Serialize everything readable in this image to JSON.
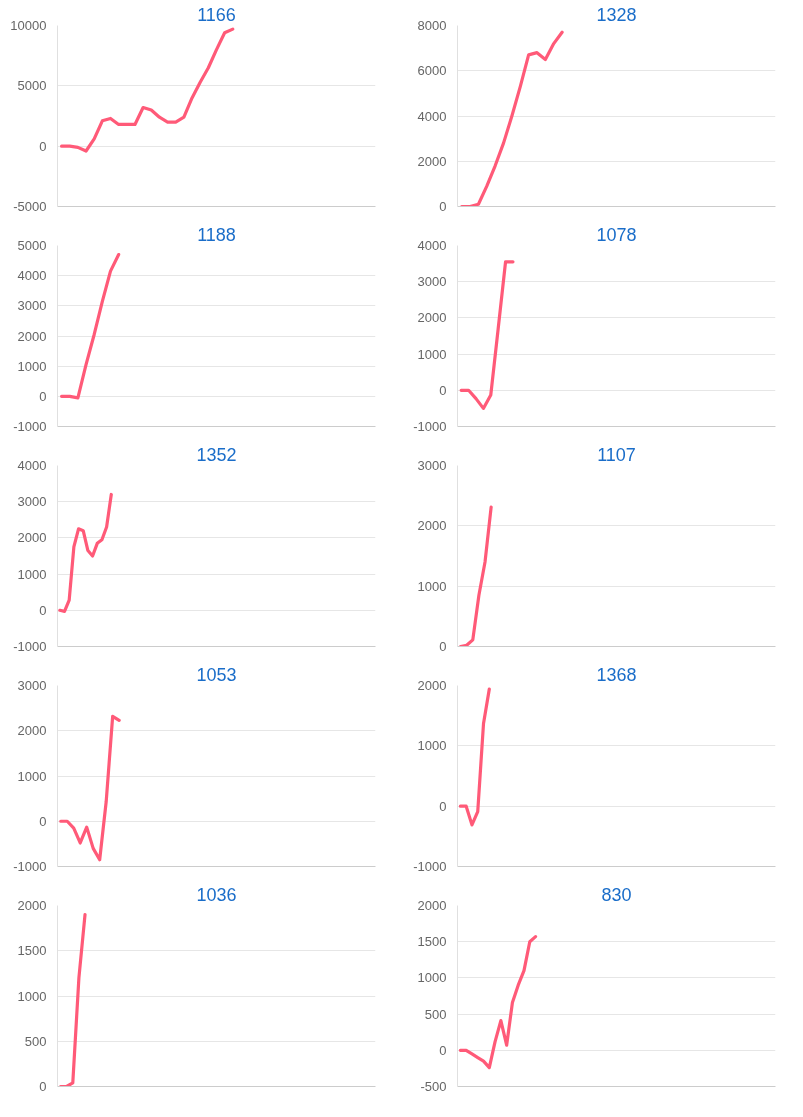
{
  "chart_data": [
    {
      "type": "line",
      "title": "1166",
      "categories": [
        null,
        null,
        null,
        null,
        null,
        null,
        null,
        null,
        null,
        null,
        null,
        null,
        null,
        null,
        null,
        null,
        null,
        null,
        null,
        null,
        null,
        null,
        null,
        null,
        null,
        null,
        null,
        null,
        null,
        null,
        null,
        null,
        null,
        null,
        null,
        null,
        null,
        null,
        null
      ],
      "values": [
        0,
        0,
        -100,
        -400,
        600,
        2100,
        2300,
        1800,
        1800,
        1800,
        3200,
        3000,
        2400,
        2000,
        2000,
        2400,
        4000,
        5300,
        6500,
        8000,
        9400,
        9700,
        null,
        null,
        null,
        null,
        null,
        null,
        null,
        null,
        null,
        null,
        null,
        null,
        null,
        null,
        null,
        null,
        null
      ],
      "color": "#ff5a78",
      "ylim": [
        -5000,
        10000
      ],
      "yticks": [
        -5000,
        0,
        5000,
        10000
      ],
      "grid": "y",
      "tick_labels": "y"
    },
    {
      "type": "line",
      "title": "1328",
      "categories": [
        null,
        null,
        null,
        null,
        null,
        null,
        null,
        null,
        null,
        null,
        null,
        null,
        null,
        null,
        null,
        null,
        null,
        null,
        null,
        null,
        null,
        null,
        null,
        null,
        null,
        null,
        null,
        null,
        null,
        null,
        null,
        null,
        null,
        null,
        null,
        null,
        null,
        null
      ],
      "values": [
        0,
        0,
        100,
        900,
        1800,
        2800,
        4000,
        5300,
        6700,
        6800,
        6500,
        7200,
        7700,
        null,
        null,
        null,
        null,
        null,
        null,
        null,
        null,
        null,
        null,
        null,
        null,
        null,
        null,
        null,
        null,
        null,
        null,
        null,
        null,
        null,
        null,
        null,
        null,
        null
      ],
      "color": "#ff5a78",
      "ylim": [
        0,
        8000
      ],
      "yticks": [
        0,
        2000,
        4000,
        6000,
        8000
      ],
      "grid": "y",
      "tick_labels": "y"
    },
    {
      "type": "line",
      "title": "1188",
      "categories": [
        null,
        null,
        null,
        null,
        null,
        null,
        null,
        null,
        null,
        null,
        null,
        null,
        null,
        null,
        null,
        null,
        null,
        null,
        null,
        null,
        null,
        null,
        null,
        null,
        null,
        null,
        null,
        null,
        null,
        null,
        null,
        null,
        null,
        null,
        null,
        null,
        null,
        null,
        null
      ],
      "values": [
        0,
        0,
        -50,
        1050,
        2050,
        3150,
        4150,
        4700,
        null,
        null,
        null,
        null,
        null,
        null,
        null,
        null,
        null,
        null,
        null,
        null,
        null,
        null,
        null,
        null,
        null,
        null,
        null,
        null,
        null,
        null,
        null,
        null,
        null,
        null,
        null,
        null,
        null,
        null,
        null
      ],
      "color": "#ff5a78",
      "ylim": [
        -1000,
        5000
      ],
      "yticks": [
        -1000,
        0,
        1000,
        2000,
        3000,
        4000,
        5000
      ],
      "grid": "y",
      "tick_labels": "y"
    },
    {
      "type": "line",
      "title": "1078",
      "categories": [
        null,
        null,
        null,
        null,
        null,
        null,
        null,
        null,
        null,
        null,
        null,
        null,
        null,
        null,
        null,
        null,
        null,
        null,
        null,
        null,
        null,
        null,
        null,
        null,
        null,
        null,
        null,
        null,
        null,
        null,
        null,
        null,
        null,
        null,
        null,
        null,
        null,
        null,
        null,
        null,
        null,
        null,
        null
      ],
      "values": [
        0,
        0,
        -230,
        -500,
        -130,
        1700,
        3550,
        3550,
        null,
        null,
        null,
        null,
        null,
        null,
        null,
        null,
        null,
        null,
        null,
        null,
        null,
        null,
        null,
        null,
        null,
        null,
        null,
        null,
        null,
        null,
        null,
        null,
        null,
        null,
        null,
        null,
        null,
        null,
        null,
        null,
        null,
        null,
        null
      ],
      "color": "#ff5a78",
      "ylim": [
        -1000,
        4000
      ],
      "yticks": [
        -1000,
        0,
        1000,
        2000,
        3000,
        4000
      ],
      "grid": "y",
      "tick_labels": "y"
    },
    {
      "type": "line",
      "title": "1352",
      "categories": [
        null,
        null,
        null,
        null,
        null,
        null,
        null,
        null,
        null,
        null,
        null,
        null,
        null,
        null,
        null,
        null,
        null,
        null,
        null,
        null,
        null,
        null,
        null,
        null,
        null,
        null,
        null,
        null,
        null,
        null,
        null,
        null,
        null,
        null,
        null,
        null,
        null,
        null,
        null,
        null,
        null,
        null,
        null,
        null,
        null,
        null,
        null,
        null,
        null,
        null,
        null,
        null,
        null,
        null,
        null,
        null,
        null,
        null,
        null,
        null,
        null,
        null,
        null,
        null,
        null,
        null,
        null,
        null
      ],
      "values": [
        0,
        -30,
        280,
        1750,
        2250,
        2200,
        1650,
        1500,
        1850,
        1950,
        2300,
        3200,
        null,
        null,
        null,
        null,
        null,
        null,
        null,
        null,
        null,
        null,
        null,
        null,
        null,
        null,
        null,
        null,
        null,
        null,
        null,
        null,
        null,
        null,
        null,
        null,
        null,
        null,
        null,
        null,
        null,
        null,
        null,
        null,
        null,
        null,
        null,
        null,
        null,
        null,
        null,
        null,
        null,
        null,
        null,
        null,
        null,
        null,
        null,
        null,
        null,
        null,
        null,
        null,
        null,
        null,
        null,
        null
      ],
      "color": "#ff5a78",
      "ylim": [
        -1000,
        4000
      ],
      "yticks": [
        -1000,
        0,
        1000,
        2000,
        3000,
        4000
      ],
      "grid": "y",
      "tick_labels": "y"
    },
    {
      "type": "line",
      "title": "1107",
      "categories": [
        null,
        null,
        null,
        null,
        null,
        null,
        null,
        null,
        null,
        null,
        null,
        null,
        null,
        null,
        null,
        null,
        null,
        null,
        null,
        null,
        null,
        null,
        null,
        null,
        null,
        null,
        null,
        null,
        null,
        null,
        null,
        null,
        null,
        null,
        null,
        null,
        null,
        null,
        null,
        null,
        null,
        null,
        null,
        null,
        null,
        null,
        null,
        null,
        null,
        null,
        null,
        null
      ],
      "values": [
        0,
        20,
        110,
        850,
        1400,
        2310,
        null,
        null,
        null,
        null,
        null,
        null,
        null,
        null,
        null,
        null,
        null,
        null,
        null,
        null,
        null,
        null,
        null,
        null,
        null,
        null,
        null,
        null,
        null,
        null,
        null,
        null,
        null,
        null,
        null,
        null,
        null,
        null,
        null,
        null,
        null,
        null,
        null,
        null,
        null,
        null,
        null,
        null,
        null,
        null,
        null,
        null
      ],
      "color": "#ff5a78",
      "ylim": [
        0,
        3000
      ],
      "yticks": [
        0,
        1000,
        2000,
        3000
      ],
      "grid": "y",
      "tick_labels": "y"
    },
    {
      "type": "line",
      "title": "1053",
      "categories": [
        null,
        null,
        null,
        null,
        null,
        null,
        null,
        null,
        null,
        null,
        null,
        null,
        null,
        null,
        null,
        null,
        null,
        null,
        null,
        null,
        null,
        null,
        null,
        null,
        null,
        null,
        null,
        null,
        null,
        null,
        null,
        null,
        null,
        null,
        null,
        null,
        null,
        null,
        null,
        null,
        null,
        null,
        null,
        null,
        null,
        null,
        null,
        null,
        null
      ],
      "values": [
        0,
        0,
        -150,
        -480,
        -130,
        -600,
        -850,
        430,
        2320,
        2230,
        null,
        null,
        null,
        null,
        null,
        null,
        null,
        null,
        null,
        null,
        null,
        null,
        null,
        null,
        null,
        null,
        null,
        null,
        null,
        null,
        null,
        null,
        null,
        null,
        null,
        null,
        null,
        null,
        null,
        null,
        null,
        null,
        null,
        null,
        null,
        null,
        null,
        null,
        null
      ],
      "color": "#ff5a78",
      "ylim": [
        -1000,
        3000
      ],
      "yticks": [
        -1000,
        0,
        1000,
        2000,
        3000
      ],
      "grid": "y",
      "tick_labels": "y"
    },
    {
      "type": "line",
      "title": "1368",
      "categories": [
        null,
        null,
        null,
        null,
        null,
        null,
        null,
        null,
        null,
        null,
        null,
        null,
        null,
        null,
        null,
        null,
        null,
        null,
        null,
        null,
        null,
        null,
        null,
        null,
        null,
        null,
        null,
        null,
        null,
        null,
        null,
        null,
        null,
        null,
        null,
        null,
        null,
        null,
        null,
        null,
        null,
        null,
        null,
        null,
        null,
        null,
        null,
        null,
        null,
        null,
        null,
        null,
        null,
        null,
        null
      ],
      "values": [
        0,
        0,
        -310,
        -90,
        1370,
        1940,
        null,
        null,
        null,
        null,
        null,
        null,
        null,
        null,
        null,
        null,
        null,
        null,
        null,
        null,
        null,
        null,
        null,
        null,
        null,
        null,
        null,
        null,
        null,
        null,
        null,
        null,
        null,
        null,
        null,
        null,
        null,
        null,
        null,
        null,
        null,
        null,
        null,
        null,
        null,
        null,
        null,
        null,
        null,
        null,
        null,
        null,
        null,
        null,
        null
      ],
      "color": "#ff5a78",
      "ylim": [
        -1000,
        2000
      ],
      "yticks": [
        -1000,
        0,
        1000,
        2000
      ],
      "grid": "y",
      "tick_labels": "y"
    },
    {
      "type": "line",
      "title": "1036",
      "categories": [
        null,
        null,
        null,
        null,
        null,
        null,
        null,
        null,
        null,
        null,
        null,
        null,
        null,
        null,
        null,
        null,
        null,
        null,
        null,
        null,
        null,
        null,
        null,
        null,
        null,
        null,
        null,
        null,
        null,
        null,
        null,
        null,
        null,
        null,
        null,
        null,
        null,
        null,
        null,
        null,
        null,
        null,
        null,
        null,
        null,
        null,
        null,
        null,
        null,
        null,
        null,
        null
      ],
      "values": [
        0,
        0,
        40,
        1200,
        1900,
        null,
        null,
        null,
        null,
        null,
        null,
        null,
        null,
        null,
        null,
        null,
        null,
        null,
        null,
        null,
        null,
        null,
        null,
        null,
        null,
        null,
        null,
        null,
        null,
        null,
        null,
        null,
        null,
        null,
        null,
        null,
        null,
        null,
        null,
        null,
        null,
        null,
        null,
        null,
        null,
        null,
        null,
        null,
        null,
        null,
        null,
        null
      ],
      "color": "#ff5a78",
      "ylim": [
        0,
        2000
      ],
      "yticks": [
        0,
        500,
        1000,
        1500,
        2000
      ],
      "grid": "y",
      "tick_labels": "y"
    },
    {
      "type": "line",
      "title": "830",
      "categories": [
        null,
        null,
        null,
        null,
        null,
        null,
        null,
        null,
        null,
        null,
        null,
        null,
        null,
        null,
        null,
        null,
        null,
        null,
        null,
        null,
        null,
        null,
        null,
        null,
        null,
        null,
        null,
        null,
        null,
        null,
        null,
        null,
        null,
        null,
        null,
        null,
        null,
        null,
        null,
        null,
        null,
        null,
        null,
        null,
        null,
        null,
        null,
        null,
        null,
        null,
        null,
        null,
        null,
        null,
        null
      ],
      "values": [
        0,
        0,
        -50,
        -100,
        -150,
        -240,
        120,
        410,
        70,
        660,
        900,
        1100,
        1500,
        1570,
        null,
        null,
        null,
        null,
        null,
        null,
        null,
        null,
        null,
        null,
        null,
        null,
        null,
        null,
        null,
        null,
        null,
        null,
        null,
        null,
        null,
        null,
        null,
        null,
        null,
        null,
        null,
        null,
        null,
        null,
        null,
        null,
        null,
        null,
        null,
        null,
        null,
        null,
        null,
        null,
        null
      ],
      "color": "#ff5a78",
      "ylim": [
        -500,
        2000
      ],
      "yticks": [
        -500,
        0,
        500,
        1000,
        1500,
        2000
      ],
      "grid": "y",
      "tick_labels": "y"
    }
  ]
}
